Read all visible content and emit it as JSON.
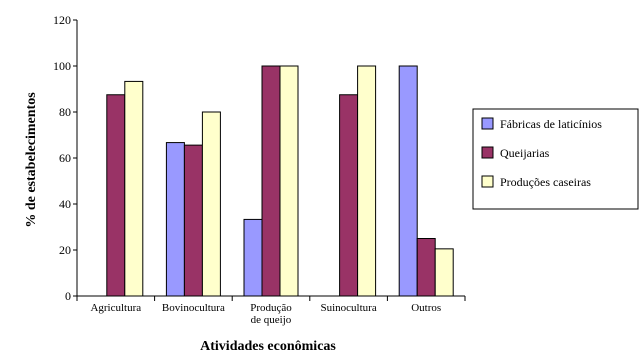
{
  "chart_data": {
    "type": "bar",
    "title": "",
    "xlabel": "Atividades econômicas",
    "ylabel": "% de estabelecimentos",
    "ylim": [
      0,
      120
    ],
    "yticks": [
      0,
      20,
      40,
      60,
      80,
      100,
      120
    ],
    "categories": [
      [
        "Agricultura"
      ],
      [
        "Bovinocultura"
      ],
      [
        "Produção",
        "de queijo"
      ],
      [
        "Suinocultura"
      ],
      [
        "Outros"
      ]
    ],
    "series": [
      {
        "name": "Fábricas de laticínios",
        "color": "#9999ff",
        "values": [
          0,
          66.7,
          33.3,
          0,
          100
        ]
      },
      {
        "name": "Queijarias",
        "color": "#993366",
        "values": [
          87.5,
          65.6,
          100,
          87.5,
          25
        ]
      },
      {
        "name": "Produções caseiras",
        "color": "#ffffcc",
        "values": [
          93.3,
          80,
          100,
          100,
          20.5
        ]
      }
    ],
    "grid": false,
    "legend": "right"
  }
}
